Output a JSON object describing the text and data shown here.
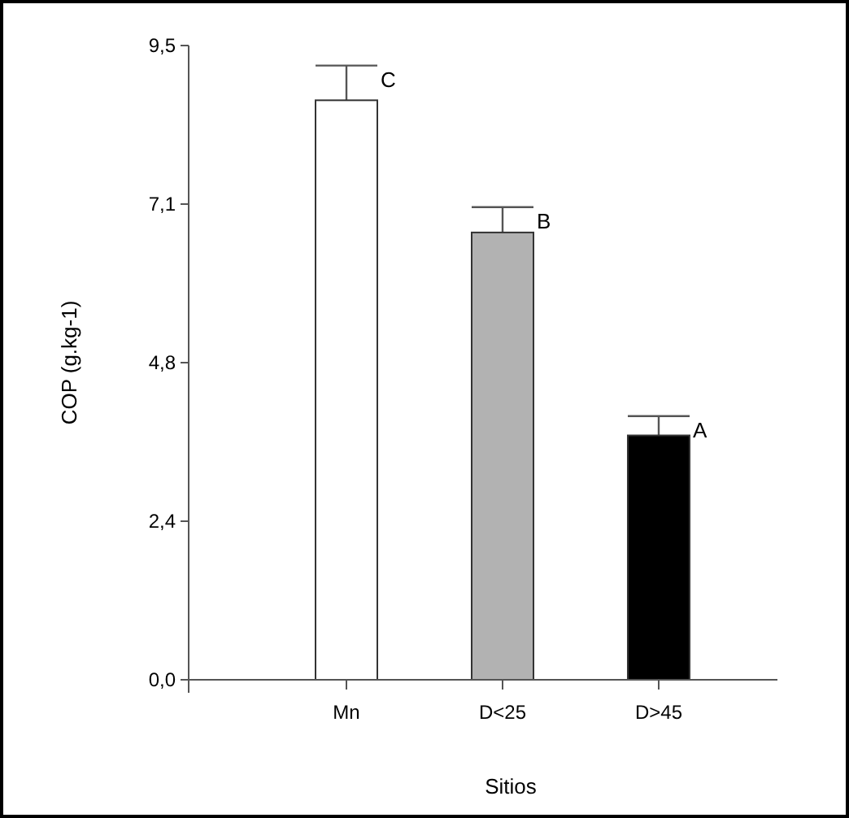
{
  "chart_data": {
    "type": "bar",
    "xlabel": "Sitios",
    "ylabel": "COP (g.kg-1)",
    "categories": [
      "Mn",
      "D<25",
      "D>45"
    ],
    "values": [
      8.68,
      6.7,
      3.66
    ],
    "colors": [
      "#ffffff",
      "#b2b2b2",
      "#000000"
    ],
    "errors": [
      0.52,
      0.38,
      0.29
    ],
    "ylim": [
      0,
      9.5
    ],
    "yticks": [
      {
        "value": 0,
        "label": "0,0"
      },
      {
        "value": 2.375,
        "label": "2,4"
      },
      {
        "value": 4.75,
        "label": "4,8"
      },
      {
        "value": 7.125,
        "label": "7,1"
      },
      {
        "value": 9.5,
        "label": "9,5"
      }
    ],
    "annotations": [
      {
        "text": "C",
        "x": "Mn",
        "y": 9.2
      },
      {
        "text": "B",
        "x": "D<25",
        "y": 7.08
      },
      {
        "text": "A",
        "x": "D>45",
        "y": 3.95
      }
    ],
    "grid": false
  }
}
